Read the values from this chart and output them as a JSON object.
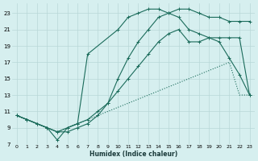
{
  "xlabel": "Humidex (Indice chaleur)",
  "bg_color": "#d6efef",
  "grid_color": "#b8d8d8",
  "line_color": "#1a6b5a",
  "xlim": [
    -0.5,
    23.5
  ],
  "ylim": [
    7,
    24.2
  ],
  "xticks": [
    0,
    1,
    2,
    3,
    4,
    5,
    6,
    7,
    8,
    9,
    10,
    11,
    12,
    13,
    14,
    15,
    16,
    17,
    18,
    19,
    20,
    21,
    22,
    23
  ],
  "yticks": [
    7,
    9,
    11,
    13,
    15,
    17,
    19,
    21,
    23
  ],
  "line1_x": [
    0,
    1,
    2,
    3,
    4,
    5,
    6,
    7,
    8,
    9,
    10,
    11,
    12,
    13,
    14,
    15,
    16,
    17,
    18,
    19,
    20,
    21,
    22,
    23
  ],
  "line1_y": [
    10.5,
    10.0,
    9.5,
    9.0,
    8.5,
    9.0,
    9.5,
    10.0,
    10.5,
    11.0,
    11.5,
    12.0,
    12.5,
    13.0,
    13.5,
    14.0,
    14.5,
    15.0,
    15.5,
    16.0,
    16.5,
    17.0,
    13.0,
    13.0
  ],
  "line2_x": [
    0,
    1,
    2,
    3,
    4,
    5,
    6,
    7,
    8,
    9,
    10,
    11,
    12,
    13,
    14,
    15,
    16,
    17,
    18,
    19,
    20,
    21,
    22,
    23
  ],
  "line2_y": [
    10.5,
    10.0,
    9.5,
    9.0,
    8.5,
    9.0,
    9.5,
    10.0,
    11.0,
    12.0,
    13.5,
    15.0,
    16.5,
    18.0,
    19.5,
    20.5,
    21.0,
    19.5,
    19.5,
    20.0,
    20.0,
    20.0,
    20.0,
    13.0
  ],
  "line3_x": [
    0,
    1,
    2,
    3,
    4,
    5,
    6,
    7,
    8,
    9,
    10,
    11,
    12,
    13,
    14,
    15,
    16,
    17,
    18,
    19,
    20,
    21,
    22,
    23
  ],
  "line3_y": [
    10.5,
    10.0,
    9.5,
    9.0,
    8.5,
    8.5,
    9.0,
    9.5,
    10.5,
    12.0,
    15.0,
    17.5,
    19.5,
    21.0,
    22.5,
    23.0,
    23.5,
    23.5,
    23.0,
    22.5,
    22.5,
    22.0,
    22.0,
    22.0
  ],
  "line4_x": [
    0,
    1,
    3,
    4,
    5,
    6,
    7,
    10,
    11,
    12,
    13,
    14,
    15,
    16,
    17,
    18,
    19,
    20,
    21,
    22,
    23
  ],
  "line4_y": [
    10.5,
    10.0,
    9.0,
    7.5,
    9.0,
    9.5,
    18.0,
    21.0,
    22.5,
    23.0,
    23.5,
    23.5,
    23.0,
    22.5,
    21.0,
    20.5,
    20.0,
    19.5,
    17.5,
    15.5,
    13.0
  ]
}
